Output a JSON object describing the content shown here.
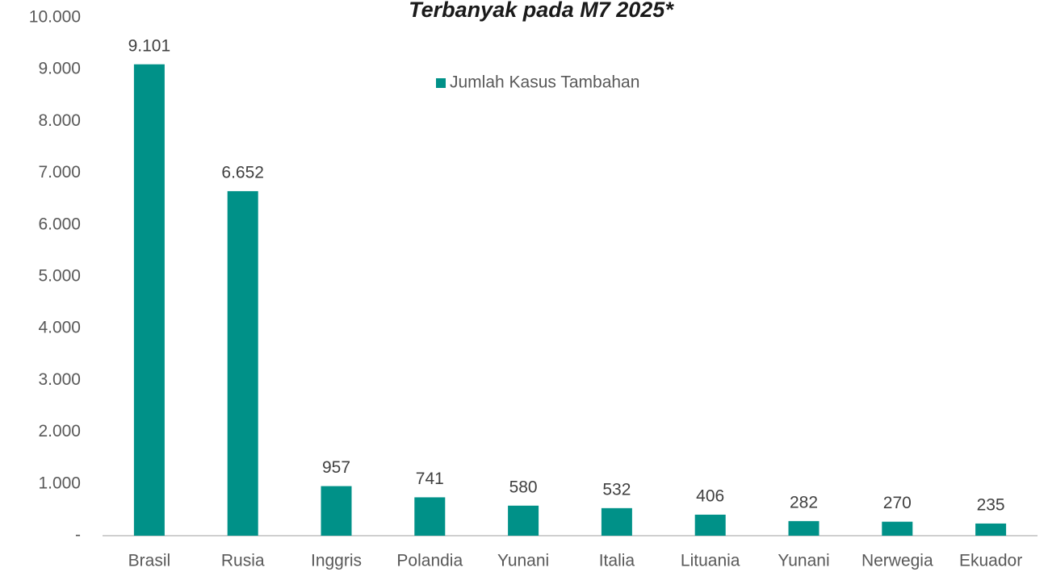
{
  "chart_data": {
    "type": "bar",
    "title": "Terbanyak pada M7 2025*",
    "categories": [
      "Brasil",
      "Rusia",
      "Inggris",
      "Polandia",
      "Yunani",
      "Italia",
      "Lituania",
      "Yunani",
      "Nerwegia",
      "Ekuador"
    ],
    "series": [
      {
        "name": "Jumlah Kasus Tambahan",
        "color": "#009188",
        "values": [
          9101,
          6652,
          957,
          741,
          580,
          532,
          406,
          282,
          270,
          235
        ],
        "value_labels": [
          "9.101",
          "6.652",
          "957",
          "741",
          "580",
          "532",
          "406",
          "282",
          "270",
          "235"
        ]
      }
    ],
    "ylim": [
      0,
      10000
    ],
    "yticks": [
      {
        "value": 0,
        "label": "-"
      },
      {
        "value": 1000,
        "label": "1.000"
      },
      {
        "value": 2000,
        "label": "2.000"
      },
      {
        "value": 3000,
        "label": "3.000"
      },
      {
        "value": 4000,
        "label": "4.000"
      },
      {
        "value": 5000,
        "label": "5.000"
      },
      {
        "value": 6000,
        "label": "6.000"
      },
      {
        "value": 7000,
        "label": "7.000"
      },
      {
        "value": 8000,
        "label": "8.000"
      },
      {
        "value": 9000,
        "label": "9.000"
      },
      {
        "value": 10000,
        "label": "10.000"
      }
    ],
    "grid": false,
    "legend": "top"
  }
}
